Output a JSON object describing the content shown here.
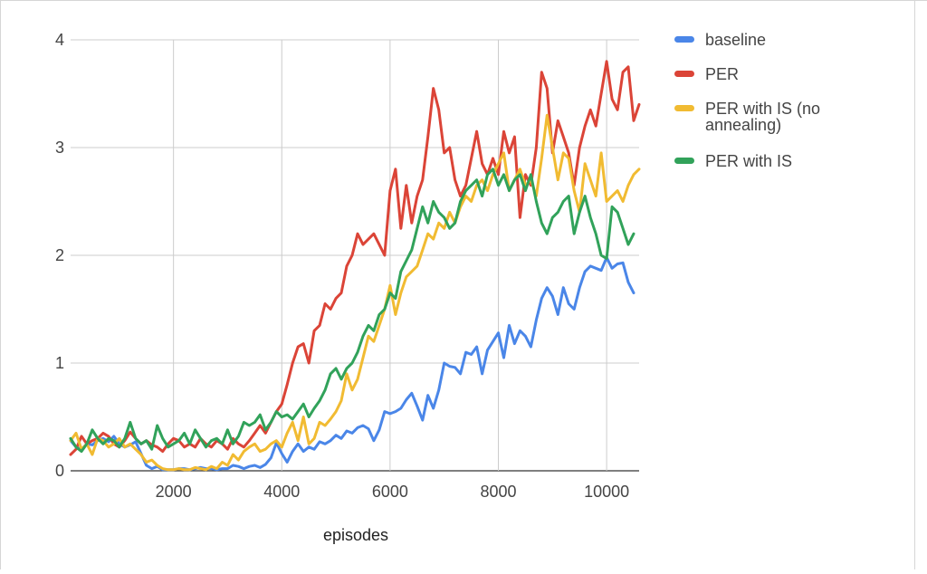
{
  "chart_data": {
    "type": "line",
    "title": "",
    "xlabel": "episodes",
    "ylabel": "",
    "xlim": [
      100,
      10600
    ],
    "ylim": [
      0,
      4
    ],
    "x_ticks": [
      2000,
      4000,
      6000,
      8000,
      10000
    ],
    "y_ticks": [
      0,
      1,
      2,
      3,
      4
    ],
    "grid": true,
    "legend_position": "right",
    "x_step": 100,
    "x_start": 100,
    "series": [
      {
        "name": "baseline",
        "color": "#4a86e8",
        "values": [
          0.28,
          0.22,
          0.2,
          0.25,
          0.24,
          0.28,
          0.3,
          0.27,
          0.32,
          0.25,
          0.22,
          0.24,
          0.27,
          0.16,
          0.05,
          0.02,
          0.04,
          0.01,
          0.01,
          0.01,
          0.02,
          0.02,
          0.01,
          0.02,
          0.03,
          0.02,
          0.02,
          0.01,
          0.02,
          0.02,
          0.05,
          0.04,
          0.02,
          0.04,
          0.05,
          0.03,
          0.06,
          0.12,
          0.26,
          0.16,
          0.08,
          0.18,
          0.25,
          0.18,
          0.22,
          0.2,
          0.27,
          0.25,
          0.28,
          0.33,
          0.3,
          0.37,
          0.35,
          0.4,
          0.42,
          0.39,
          0.28,
          0.38,
          0.55,
          0.53,
          0.55,
          0.58,
          0.66,
          0.72,
          0.6,
          0.47,
          0.7,
          0.58,
          0.75,
          1.0,
          0.97,
          0.96,
          0.9,
          1.1,
          1.08,
          1.15,
          0.9,
          1.12,
          1.2,
          1.28,
          1.05,
          1.35,
          1.18,
          1.3,
          1.25,
          1.15,
          1.4,
          1.6,
          1.7,
          1.62,
          1.45,
          1.7,
          1.55,
          1.5,
          1.7,
          1.85,
          1.9,
          1.88,
          1.86,
          1.98,
          1.88,
          1.92,
          1.93,
          1.75,
          1.65
        ]
      },
      {
        "name": "PER",
        "color": "#db4437",
        "values": [
          0.15,
          0.2,
          0.32,
          0.25,
          0.28,
          0.3,
          0.35,
          0.32,
          0.25,
          0.22,
          0.28,
          0.36,
          0.3,
          0.25,
          0.28,
          0.24,
          0.22,
          0.18,
          0.25,
          0.3,
          0.28,
          0.22,
          0.25,
          0.22,
          0.3,
          0.25,
          0.22,
          0.28,
          0.25,
          0.2,
          0.3,
          0.25,
          0.22,
          0.28,
          0.35,
          0.42,
          0.35,
          0.45,
          0.55,
          0.62,
          0.8,
          1.0,
          1.15,
          1.18,
          1.0,
          1.3,
          1.35,
          1.55,
          1.5,
          1.6,
          1.65,
          1.9,
          2.0,
          2.2,
          2.1,
          2.15,
          2.2,
          2.1,
          2.0,
          2.6,
          2.8,
          2.25,
          2.65,
          2.3,
          2.55,
          2.7,
          3.1,
          3.55,
          3.35,
          2.95,
          3.0,
          2.7,
          2.55,
          2.65,
          2.9,
          3.15,
          2.85,
          2.75,
          2.9,
          2.75,
          3.15,
          2.95,
          3.1,
          2.35,
          2.75,
          2.65,
          3.0,
          3.7,
          3.55,
          2.95,
          3.25,
          3.1,
          2.95,
          2.65,
          3.0,
          3.2,
          3.35,
          3.2,
          3.5,
          3.8,
          3.45,
          3.35,
          3.7,
          3.75,
          3.25,
          3.4
        ]
      },
      {
        "name": "PER with IS (no annealing)",
        "color": "#f1bb32",
        "values": [
          0.28,
          0.35,
          0.2,
          0.25,
          0.15,
          0.3,
          0.28,
          0.22,
          0.25,
          0.3,
          0.22,
          0.25,
          0.2,
          0.15,
          0.08,
          0.1,
          0.05,
          0.02,
          0.01,
          0.01,
          0.02,
          0.01,
          0.01,
          0.03,
          0.02,
          0.01,
          0.04,
          0.02,
          0.08,
          0.05,
          0.15,
          0.1,
          0.18,
          0.22,
          0.25,
          0.18,
          0.2,
          0.25,
          0.28,
          0.22,
          0.35,
          0.45,
          0.28,
          0.5,
          0.25,
          0.3,
          0.45,
          0.42,
          0.48,
          0.55,
          0.65,
          0.9,
          0.75,
          0.85,
          1.05,
          1.25,
          1.2,
          1.35,
          1.5,
          1.72,
          1.45,
          1.65,
          1.8,
          1.85,
          1.9,
          2.05,
          2.2,
          2.15,
          2.3,
          2.25,
          2.4,
          2.3,
          2.45,
          2.55,
          2.5,
          2.65,
          2.7,
          2.6,
          2.75,
          2.85,
          2.95,
          2.6,
          2.7,
          2.8,
          2.65,
          2.7,
          2.55,
          2.9,
          3.3,
          3.0,
          2.7,
          2.95,
          2.9,
          2.6,
          2.4,
          2.85,
          2.7,
          2.55,
          2.95,
          2.5,
          2.55,
          2.6,
          2.5,
          2.65,
          2.75,
          2.8
        ]
      },
      {
        "name": "PER with IS",
        "color": "#31a25a",
        "values": [
          0.3,
          0.22,
          0.18,
          0.25,
          0.38,
          0.3,
          0.25,
          0.3,
          0.28,
          0.22,
          0.3,
          0.45,
          0.3,
          0.25,
          0.28,
          0.2,
          0.42,
          0.3,
          0.22,
          0.25,
          0.28,
          0.35,
          0.25,
          0.38,
          0.3,
          0.22,
          0.28,
          0.3,
          0.25,
          0.38,
          0.25,
          0.32,
          0.45,
          0.42,
          0.45,
          0.52,
          0.38,
          0.45,
          0.55,
          0.5,
          0.52,
          0.48,
          0.55,
          0.62,
          0.5,
          0.58,
          0.65,
          0.75,
          0.9,
          0.95,
          0.85,
          0.95,
          1.0,
          1.1,
          1.25,
          1.35,
          1.3,
          1.45,
          1.5,
          1.65,
          1.6,
          1.85,
          1.95,
          2.05,
          2.25,
          2.45,
          2.3,
          2.5,
          2.4,
          2.35,
          2.25,
          2.3,
          2.5,
          2.6,
          2.65,
          2.7,
          2.55,
          2.75,
          2.8,
          2.65,
          2.75,
          2.6,
          2.7,
          2.75,
          2.6,
          2.75,
          2.5,
          2.3,
          2.2,
          2.35,
          2.4,
          2.5,
          2.55,
          2.2,
          2.4,
          2.55,
          2.35,
          2.2,
          2.0,
          1.97,
          2.45,
          2.4,
          2.25,
          2.1,
          2.2
        ]
      }
    ]
  }
}
